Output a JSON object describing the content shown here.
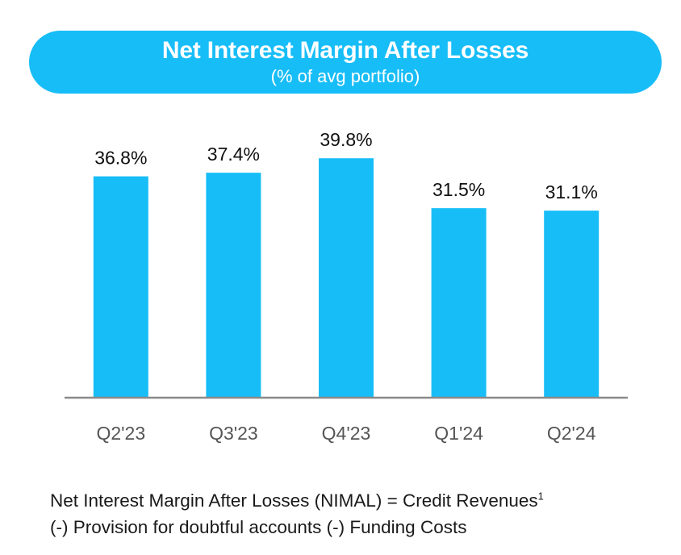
{
  "colors": {
    "accent": "#17bdf7",
    "axis": "#8a8a8a",
    "tick_text": "#555555",
    "label_text": "#111111"
  },
  "header": {
    "title": "Net Interest Margin After Losses",
    "subtitle": "(% of avg portfolio)"
  },
  "chart_data": {
    "type": "bar",
    "title": "Net Interest Margin After Losses",
    "subtitle": "(% of avg portfolio)",
    "categories": [
      "Q2'23",
      "Q3'23",
      "Q4'23",
      "Q1'24",
      "Q2'24"
    ],
    "values": [
      36.8,
      37.4,
      39.8,
      31.5,
      31.1
    ],
    "value_labels": [
      "36.8%",
      "37.4%",
      "39.8%",
      "31.5%",
      "31.1%"
    ],
    "unit": "%",
    "xlabel": "",
    "ylabel": "",
    "ylim": [
      0,
      46
    ],
    "grid": false,
    "legend": "none"
  },
  "footnote": {
    "line1": "Net Interest Margin After Losses (NIMAL) =  Credit Revenues",
    "superscript": "1",
    "line2": "(-) Provision for doubtful accounts (-) Funding Costs"
  }
}
